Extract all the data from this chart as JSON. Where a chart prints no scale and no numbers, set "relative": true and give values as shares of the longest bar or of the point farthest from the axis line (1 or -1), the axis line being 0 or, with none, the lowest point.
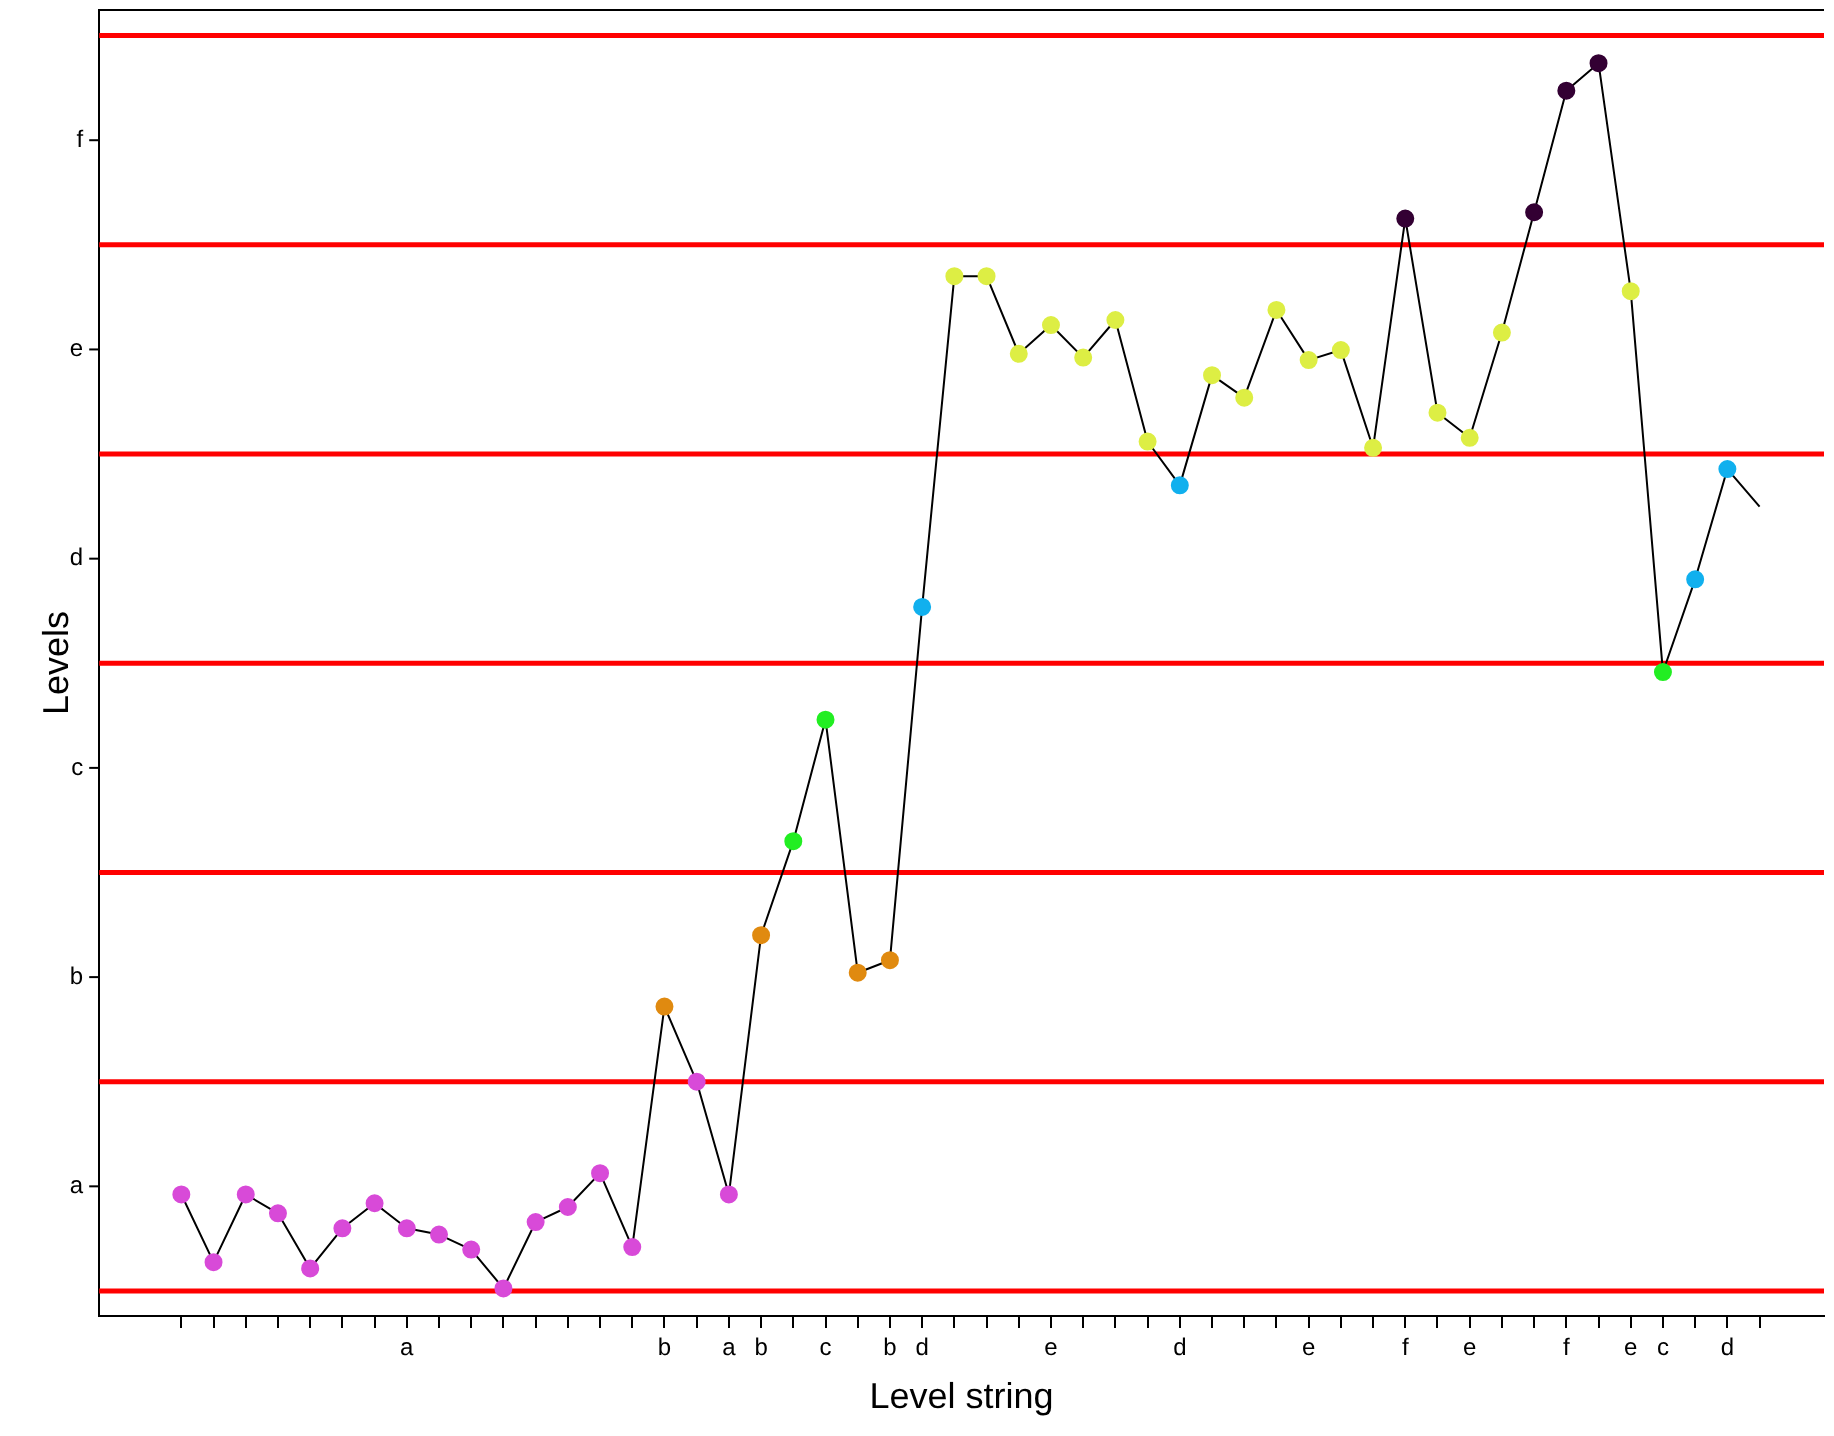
{
  "chart_data": {
    "type": "line",
    "xlabel": "Level string",
    "ylabel": "Levels",
    "relative": true,
    "categories": [
      null,
      null,
      null,
      null,
      null,
      null,
      null,
      "a",
      null,
      null,
      null,
      null,
      null,
      null,
      null,
      "b",
      null,
      "a",
      "b",
      null,
      "c",
      null,
      "b",
      "d",
      null,
      null,
      null,
      "e",
      null,
      null,
      null,
      "d",
      null,
      null,
      null,
      "e",
      null,
      null,
      "f",
      null,
      "e",
      null,
      null,
      "f",
      null,
      "e",
      "c",
      null,
      "d",
      null
    ],
    "series": [
      {
        "color": "#000000",
        "values": [
          0.097,
          0.043,
          0.097,
          0.082,
          0.038,
          0.07,
          0.09,
          0.07,
          0.065,
          0.053,
          0.022,
          0.075,
          0.087,
          0.114,
          0.055,
          0.247,
          0.187,
          0.097,
          0.304,
          0.379,
          0.476,
          0.274,
          0.284,
          0.566,
          0.83,
          0.83,
          0.768,
          0.791,
          0.765,
          0.795,
          0.698,
          0.663,
          0.751,
          0.733,
          0.803,
          0.763,
          0.771,
          0.693,
          0.876,
          0.721,
          0.701,
          0.785,
          0.881,
          0.978,
          1,
          0.818,
          0.514,
          0.588,
          0.676,
          0.646
        ],
        "colors": [
          "#d84ad8",
          "#d84ad8",
          "#d84ad8",
          "#d84ad8",
          "#d84ad8",
          "#d84ad8",
          "#d84ad8",
          "#d84ad8",
          "#d84ad8",
          "#d84ad8",
          "#d84ad8",
          "#d84ad8",
          "#d84ad8",
          "#d84ad8",
          "#d84ad8",
          "#e08a10",
          "#d84ad8",
          "#d84ad8",
          "#e08a10",
          "#22ee22",
          "#22ee22",
          "#e08a10",
          "#e08a10",
          "#11b0ee",
          "#ddee44",
          "#ddee44",
          "#ddee44",
          "#ddee44",
          "#ddee44",
          "#ddee44",
          "#ddee44",
          "#11b0ee",
          "#ddee44",
          "#ddee44",
          "#ddee44",
          "#ddee44",
          "#ddee44",
          "#ddee44",
          "#330033",
          "#ddee44",
          "#ddee44",
          "#ddee44",
          "#330033",
          "#330033",
          "#330033",
          "#ddee44",
          "#22ee22",
          "#11b0ee",
          "#11b0ee",
          null
        ]
      }
    ],
    "annotations": [
      "a",
      "b",
      "c",
      "d",
      "e",
      "f"
    ],
    "ref_lines": [
      {
        "axis": "y",
        "value": 0.02,
        "color": "#ff0000"
      },
      {
        "axis": "y",
        "value": 0.187,
        "color": "#ff0000"
      },
      {
        "axis": "y",
        "value": 0.354,
        "color": "#ff0000"
      },
      {
        "axis": "y",
        "value": 0.521,
        "color": "#ff0000"
      },
      {
        "axis": "y",
        "value": 0.688,
        "color": "#ff0000"
      },
      {
        "axis": "y",
        "value": 0.855,
        "color": "#ff0000"
      },
      {
        "axis": "y",
        "value": 1.022,
        "color": "#ff0000"
      }
    ],
    "marker": "circle",
    "grid": false,
    "legend": false
  }
}
